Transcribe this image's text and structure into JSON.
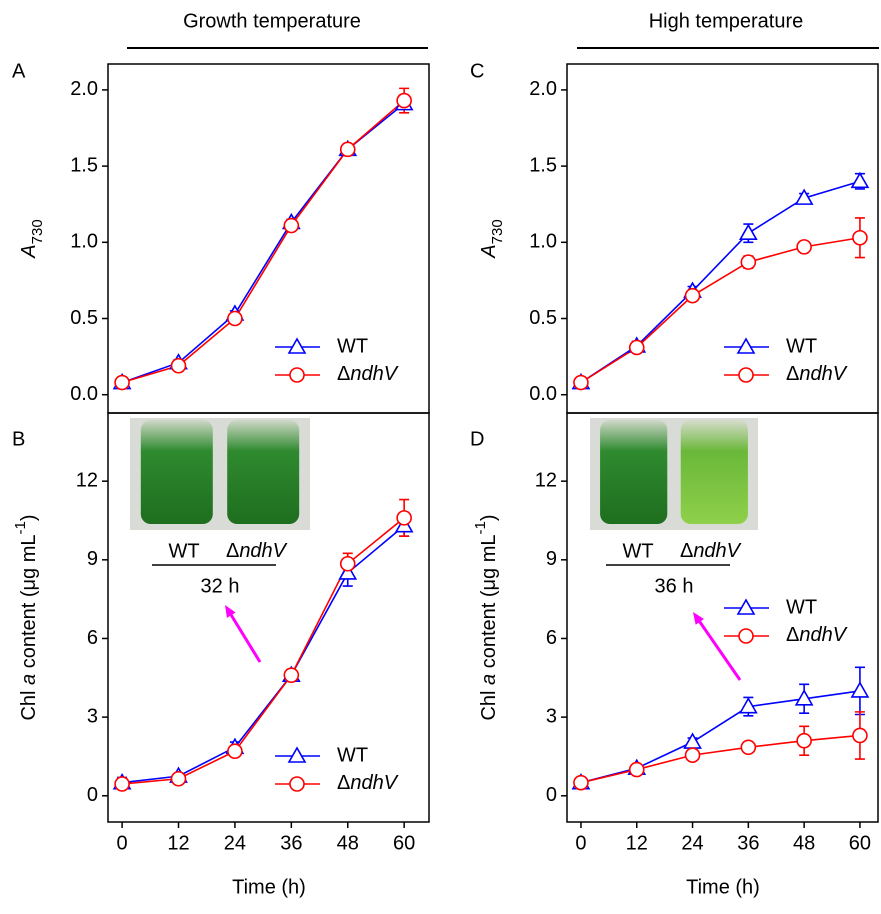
{
  "chart_data": [
    {
      "type": "line",
      "panel": "A",
      "title": "Growth temperature",
      "ylabel": [
        {
          "text": "A",
          "style": "italic"
        },
        {
          "text": "730",
          "style": "sub"
        }
      ],
      "x": [
        0,
        12,
        24,
        36,
        48,
        60
      ],
      "xlim": [
        -3,
        65.5
      ],
      "xticks": [
        0,
        12,
        24,
        36,
        48,
        60
      ],
      "ylim": [
        -0.12,
        2.17
      ],
      "yticks": [
        {
          "value": 0,
          "label": "0.0"
        },
        0.5,
        {
          "value": 1,
          "label": "1.0"
        },
        1.5,
        {
          "value": 2,
          "label": "2.0"
        }
      ],
      "legend": "lower right",
      "series": [
        {
          "name": "WT",
          "color": "#0000ff",
          "marker": "triangle",
          "values": [
            0.08,
            0.21,
            0.53,
            1.13,
            1.61,
            1.91
          ],
          "errors": [
            0.02,
            0.02,
            0.02,
            0.02,
            0.02,
            0.03
          ]
        },
        {
          "name": [
            {
              "text": "Δ"
            },
            {
              "text": "ndhV",
              "style": "italic"
            }
          ],
          "color": "#ff0000",
          "marker": "circle",
          "values": [
            0.08,
            0.19,
            0.5,
            1.11,
            1.61,
            1.93
          ],
          "errors": [
            0.02,
            0.02,
            0.02,
            0.02,
            0.02,
            0.08
          ]
        }
      ]
    },
    {
      "type": "line",
      "panel": "B",
      "xlabel": "Time (h)",
      "ylabel": [
        {
          "text": "Chl "
        },
        {
          "text": "a",
          "style": "italic"
        },
        {
          "text": " content (μg mL"
        },
        {
          "text": "-1",
          "style": "sup"
        },
        {
          "text": ")"
        }
      ],
      "x": [
        0,
        12,
        24,
        36,
        48,
        60
      ],
      "xlim": [
        -3,
        65.5
      ],
      "xticks": [
        0,
        12,
        24,
        36,
        48,
        60
      ],
      "ylim": [
        -1,
        14.6
      ],
      "yticks": [
        0,
        3,
        6,
        9,
        12
      ],
      "legend": "lower right",
      "inset": {
        "labels": [
          "WT",
          [
            {
              "text": "Δ"
            },
            {
              "text": "ndhV",
              "style": "italic"
            }
          ]
        ],
        "time": "32 h"
      },
      "series": [
        {
          "name": "WT",
          "color": "#0000ff",
          "marker": "triangle",
          "values": [
            0.5,
            0.75,
            1.85,
            4.6,
            8.5,
            10.3
          ],
          "errors": [
            0.2,
            0.1,
            0.2,
            0.2,
            0.5,
            0.4
          ]
        },
        {
          "name": [
            {
              "text": "Δ"
            },
            {
              "text": "ndhV",
              "style": "italic"
            }
          ],
          "color": "#ff0000",
          "marker": "circle",
          "values": [
            0.45,
            0.65,
            1.7,
            4.6,
            8.85,
            10.6
          ],
          "errors": [
            0.2,
            0.1,
            0.1,
            0.15,
            0.4,
            0.7
          ]
        }
      ]
    },
    {
      "type": "line",
      "panel": "C",
      "title": "High temperature",
      "ylabel": [
        {
          "text": "A",
          "style": "italic"
        },
        {
          "text": "730",
          "style": "sub"
        }
      ],
      "x": [
        0,
        12,
        24,
        36,
        48,
        60
      ],
      "xlim": [
        -3,
        64.1
      ],
      "xticks": [
        0,
        12,
        24,
        36,
        48,
        60
      ],
      "ylim": [
        -0.12,
        2.17
      ],
      "yticks": [
        {
          "value": 0,
          "label": "0.0"
        },
        0.5,
        {
          "value": 1,
          "label": "1.0"
        },
        1.5,
        {
          "value": 2,
          "label": "2.0"
        }
      ],
      "legend": "lower right",
      "series": [
        {
          "name": "WT",
          "color": "#0000ff",
          "marker": "triangle",
          "values": [
            0.08,
            0.32,
            0.68,
            1.06,
            1.29,
            1.4
          ],
          "errors": [
            0.03,
            0.03,
            0.03,
            0.06,
            0.03,
            0.05
          ]
        },
        {
          "name": [
            {
              "text": "Δ"
            },
            {
              "text": "ndhV",
              "style": "italic"
            }
          ],
          "color": "#ff0000",
          "marker": "circle",
          "values": [
            0.08,
            0.31,
            0.65,
            0.87,
            0.97,
            1.03
          ],
          "errors": [
            0.03,
            0.03,
            0.03,
            0.04,
            0.03,
            0.13
          ]
        }
      ]
    },
    {
      "type": "line",
      "panel": "D",
      "xlabel": "Time (h)",
      "ylabel": [
        {
          "text": "Chl "
        },
        {
          "text": "a",
          "style": "italic"
        },
        {
          "text": " content (μg mL"
        },
        {
          "text": "-1",
          "style": "sup"
        },
        {
          "text": ")"
        }
      ],
      "x": [
        0,
        12,
        24,
        36,
        48,
        60
      ],
      "xlim": [
        -3,
        64.1
      ],
      "xticks": [
        0,
        12,
        24,
        36,
        48,
        60
      ],
      "ylim": [
        -1,
        14.6
      ],
      "yticks": [
        0,
        3,
        6,
        9,
        12
      ],
      "legend": "center right",
      "inset": {
        "labels": [
          "WT",
          [
            {
              "text": "Δ"
            },
            {
              "text": "ndhV",
              "style": "italic"
            }
          ]
        ],
        "time": "36 h"
      },
      "series": [
        {
          "name": "WT",
          "color": "#0000ff",
          "marker": "triangle",
          "values": [
            0.5,
            1.05,
            2.05,
            3.4,
            3.7,
            4.0
          ],
          "errors": [
            0.1,
            0.1,
            0.15,
            0.35,
            0.55,
            0.9
          ]
        },
        {
          "name": [
            {
              "text": "Δ"
            },
            {
              "text": "ndhV",
              "style": "italic"
            }
          ],
          "color": "#ff0000",
          "marker": "circle",
          "values": [
            0.5,
            1.0,
            1.55,
            1.85,
            2.1,
            2.3
          ],
          "errors": [
            0.1,
            0.1,
            0.1,
            0.1,
            0.55,
            0.9
          ]
        }
      ]
    }
  ]
}
